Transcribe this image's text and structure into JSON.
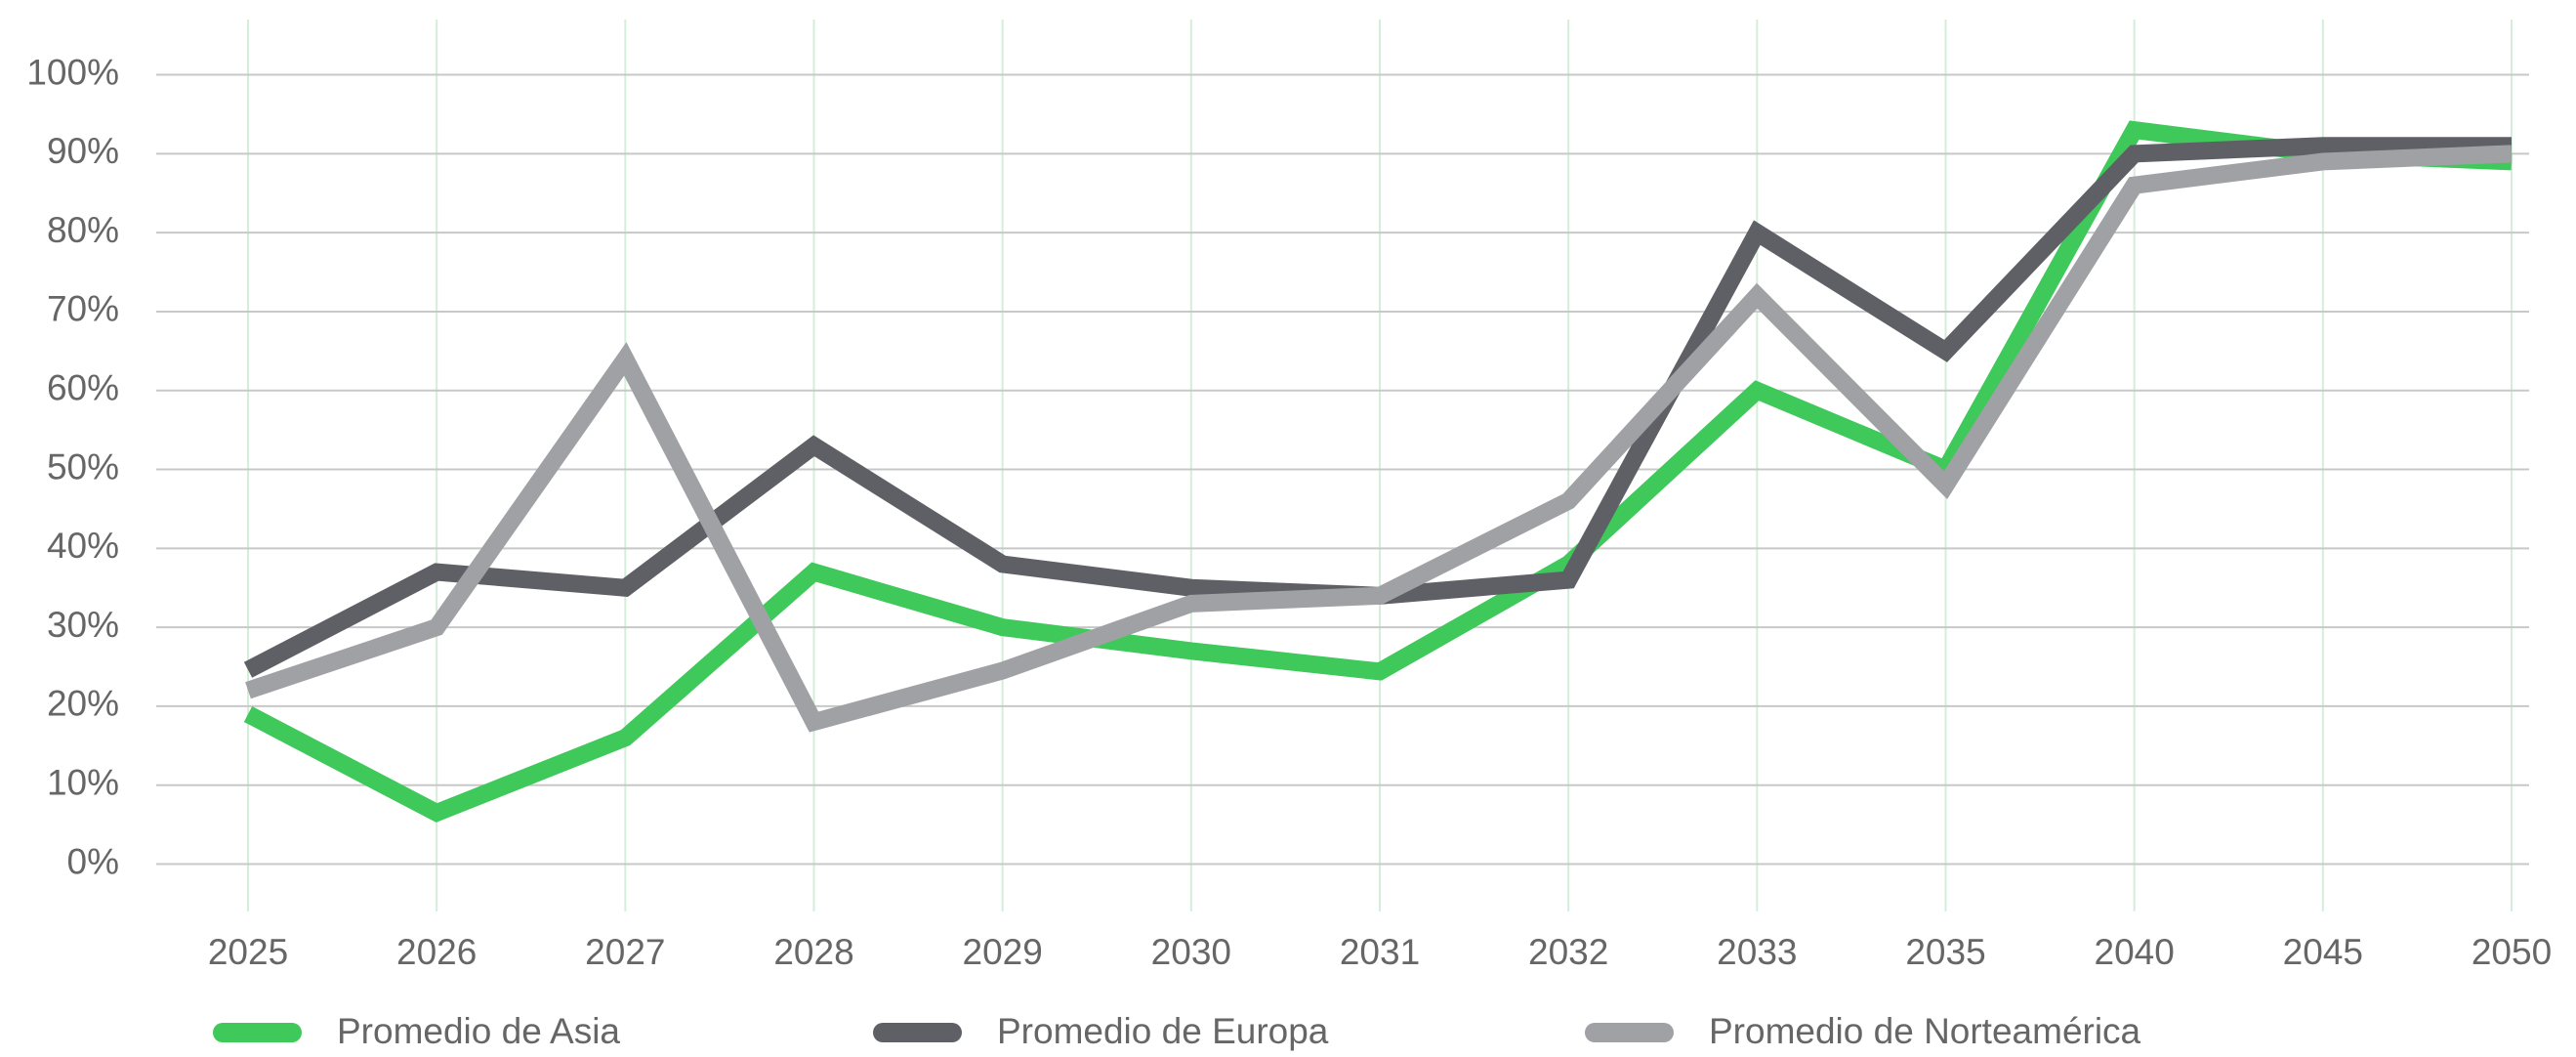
{
  "chart_data": {
    "type": "line",
    "categories": [
      "2025",
      "2026",
      "2027",
      "2028",
      "2029",
      "2030",
      "2031",
      "2032",
      "2033",
      "2035",
      "2040",
      "2045",
      "2050"
    ],
    "series": [
      {
        "name": "Promedio de Asia",
        "color": "#3ec95a",
        "values": [
          19,
          6.5,
          16,
          37,
          30,
          27,
          24.4,
          38,
          60,
          50,
          93,
          90,
          89
        ]
      },
      {
        "name": "Promedio de Europa",
        "color": "#5f6066",
        "values": [
          24.6,
          37,
          35,
          53,
          38,
          35,
          34,
          36,
          80,
          65,
          90,
          91,
          91
        ]
      },
      {
        "name": "Promedio de Norteamérica",
        "color": "#a0a1a4",
        "values": [
          22,
          30,
          64,
          18,
          24.5,
          33,
          34,
          46,
          72,
          48,
          86,
          89,
          90
        ]
      }
    ],
    "ylim": [
      -6,
      107
    ],
    "yticks": [
      {
        "value": 0,
        "label": "0%"
      },
      {
        "value": 10,
        "label": "10%"
      },
      {
        "value": 20,
        "label": "20%"
      },
      {
        "value": 30,
        "label": "30%"
      },
      {
        "value": 40,
        "label": "40%"
      },
      {
        "value": 50,
        "label": "50%"
      },
      {
        "value": 60,
        "label": "60%"
      },
      {
        "value": 70,
        "label": "70%"
      },
      {
        "value": 80,
        "label": "80%"
      },
      {
        "value": 90,
        "label": "90%"
      },
      {
        "value": 100,
        "label": "100%"
      }
    ],
    "grid": true,
    "legend": "bottom"
  }
}
